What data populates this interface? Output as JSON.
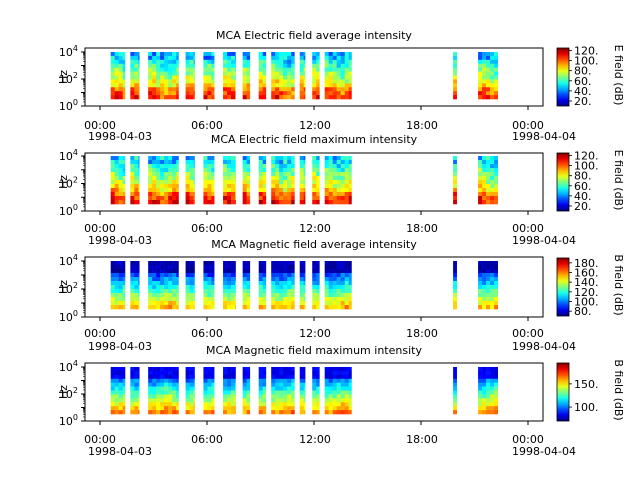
{
  "chart_data": [
    {
      "type": "heatmap",
      "title": "MCA  Electric field average intensity",
      "ylabel": "Hz",
      "yscale": "log",
      "y_ticks": [
        "10^0",
        "10^2",
        "10^4"
      ],
      "x_ticks": [
        "00:00",
        "06:00",
        "12:00",
        "18:00",
        "00:00"
      ],
      "x_dates": [
        "1998-04-03",
        "1998-04-04"
      ],
      "colorbar_label": "E field (dB)",
      "colorbar_ticks": [
        "20.",
        "40.",
        "60.",
        "80.",
        "100.",
        "120."
      ],
      "clim": [
        10,
        125
      ],
      "profile": "electric",
      "intensity_offset": 0
    },
    {
      "type": "heatmap",
      "title": "MCA  Electric field maximum intensity",
      "ylabel": "Hz",
      "yscale": "log",
      "y_ticks": [
        "10^0",
        "10^2",
        "10^4"
      ],
      "x_ticks": [
        "00:00",
        "06:00",
        "12:00",
        "18:00",
        "00:00"
      ],
      "x_dates": [
        "1998-04-03",
        "1998-04-04"
      ],
      "colorbar_label": "E field (dB)",
      "colorbar_ticks": [
        "20.",
        "40.",
        "60.",
        "80.",
        "100.",
        "120."
      ],
      "clim": [
        10,
        125
      ],
      "profile": "electric",
      "intensity_offset": 0.04
    },
    {
      "type": "heatmap",
      "title": "MCA  Magnetic field average intensity",
      "ylabel": "Hz",
      "yscale": "log",
      "y_ticks": [
        "10^0",
        "10^2",
        "10^4"
      ],
      "x_ticks": [
        "00:00",
        "06:00",
        "12:00",
        "18:00",
        "00:00"
      ],
      "x_dates": [
        "1998-04-03",
        "1998-04-04"
      ],
      "colorbar_label": "B field (dB)",
      "colorbar_ticks": [
        "80.",
        "100.",
        "120.",
        "140.",
        "160.",
        "180."
      ],
      "clim": [
        70,
        190
      ],
      "profile": "magnetic",
      "intensity_offset": 0
    },
    {
      "type": "heatmap",
      "title": "MCA  Magnetic field maximum intensity",
      "ylabel": "Hz",
      "yscale": "log",
      "y_ticks": [
        "10^0",
        "10^2",
        "10^4"
      ],
      "x_ticks": [
        "00:00",
        "06:00",
        "12:00",
        "18:00",
        "00:00"
      ],
      "x_dates": [
        "1998-04-03",
        "1998-04-04"
      ],
      "colorbar_label": "B field (dB)",
      "colorbar_ticks": [
        "100.",
        "150."
      ],
      "clim": [
        70,
        195
      ],
      "profile": "magnetic",
      "intensity_offset": 0.06
    }
  ],
  "data_segments_hours": [
    [
      0.6,
      1.4
    ],
    [
      1.7,
      2.2
    ],
    [
      2.7,
      4.4
    ],
    [
      4.8,
      5.3
    ],
    [
      5.8,
      6.4
    ],
    [
      6.9,
      7.6
    ],
    [
      8.0,
      8.4
    ],
    [
      8.9,
      9.3
    ],
    [
      9.6,
      10.9
    ],
    [
      11.2,
      11.5
    ],
    [
      11.9,
      12.3
    ],
    [
      12.6,
      14.1
    ],
    [
      19.8,
      20.0
    ],
    [
      21.2,
      22.3
    ]
  ]
}
